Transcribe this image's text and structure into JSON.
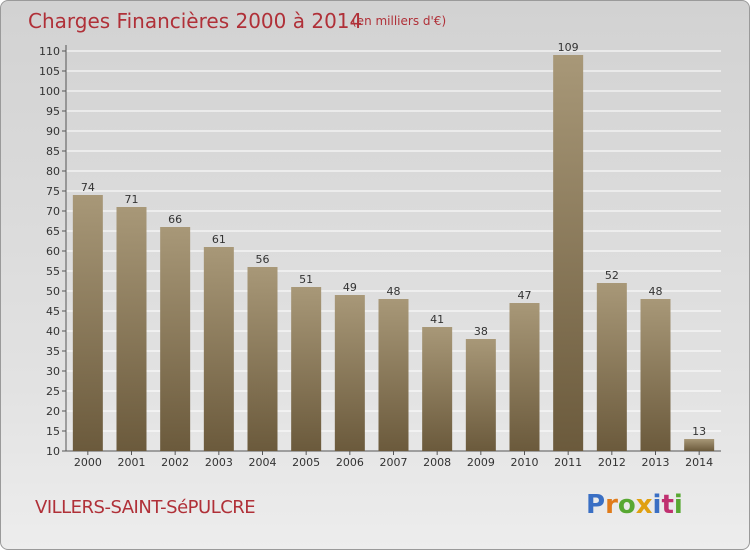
{
  "header": {
    "title": "Charges Financières 2000 à 2014",
    "subtitle": "(en milliers d'€)"
  },
  "footer": {
    "commune": "VILLERS-SAINT-SéPULCRE",
    "logo_letters": [
      "P",
      "r",
      "o",
      "x",
      "i",
      "t",
      "i"
    ]
  },
  "colors": {
    "bar_top": "#a89878",
    "bar_bottom": "#6b5a3c",
    "title": "#b03038",
    "grid": "#ffffff",
    "logo": [
      "#3a6fc4",
      "#e07b1a",
      "#58a832",
      "#e0a010",
      "#3a6fc4",
      "#c03070",
      "#58a832"
    ]
  },
  "chart_data": {
    "type": "bar",
    "title": "Charges Financières 2000 à 2014",
    "subtitle": "(en milliers d'€)",
    "categories": [
      "2000",
      "2001",
      "2002",
      "2003",
      "2004",
      "2005",
      "2006",
      "2007",
      "2008",
      "2009",
      "2010",
      "2011",
      "2012",
      "2013",
      "2014"
    ],
    "values": [
      74,
      71,
      66,
      61,
      56,
      51,
      49,
      48,
      41,
      38,
      47,
      109,
      52,
      48,
      13
    ],
    "ylim": [
      10,
      110
    ],
    "yticks": [
      10,
      15,
      20,
      25,
      30,
      35,
      40,
      45,
      50,
      55,
      60,
      65,
      70,
      75,
      80,
      85,
      90,
      95,
      100,
      105,
      110
    ],
    "grid": true,
    "data_labels": true
  }
}
